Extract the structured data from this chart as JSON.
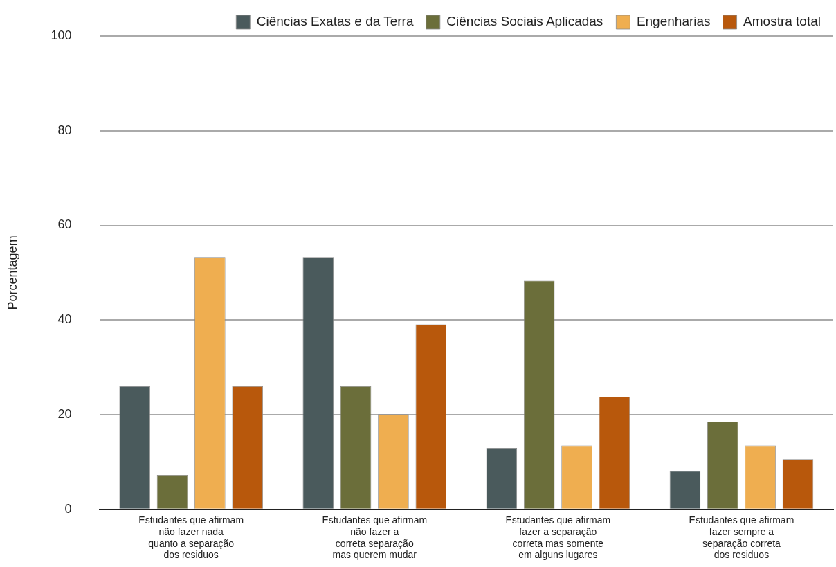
{
  "chart_data": {
    "type": "bar",
    "ylabel": "Porcentagem",
    "categories": [
      "Estudantes que afirmam\nnão fazer nada\nquanto a separação\ndos residuos",
      "Estudantes que afirmam\nnão fazer a\ncorreta separação\nmas querem mudar",
      "Estudantes que afirmam\nfazer a separação\ncorreta mas somente\nem alguns lugares",
      "Estudantes que afirmam\nfazer sempre a\nseparação correta\ndos residuos"
    ],
    "series": [
      {
        "name": "Ciências Exatas e da Terra",
        "color": "#4a5a5c",
        "values": [
          26,
          53.3,
          13,
          8.1
        ]
      },
      {
        "name": "Ciências Sociais Aplicadas",
        "color": "#6b6e3a",
        "values": [
          7.3,
          26,
          48.3,
          18.5
        ]
      },
      {
        "name": "Engenharias",
        "color": "#efae50",
        "values": [
          53.3,
          20.1,
          13.5,
          13.5
        ]
      },
      {
        "name": "Amostra total",
        "color": "#b8580c",
        "values": [
          26,
          39.1,
          23.8,
          10.6
        ]
      }
    ],
    "ylim": [
      0,
      100
    ],
    "yticks": [
      0,
      20,
      40,
      60,
      80,
      100
    ],
    "grid": "y",
    "legend": "top"
  }
}
